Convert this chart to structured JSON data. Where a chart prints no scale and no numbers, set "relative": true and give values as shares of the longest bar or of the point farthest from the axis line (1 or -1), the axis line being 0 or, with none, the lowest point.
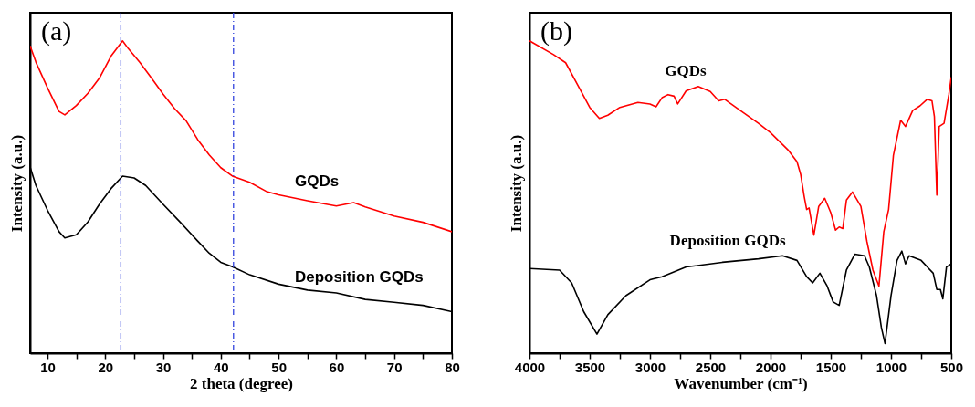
{
  "chart_data": [
    {
      "type": "line",
      "relative": true,
      "xlabel": "2 theta (degree)",
      "ylabel": "Intensity (a.u.)",
      "xlim": [
        7,
        80
      ],
      "xticks": [
        10,
        {
          "value": 15,
          "label": null
        },
        20,
        {
          "value": 25,
          "label": null
        },
        30,
        {
          "value": 35,
          "label": null
        },
        40,
        {
          "value": 45,
          "label": null
        },
        50,
        {
          "value": 55,
          "label": null
        },
        60,
        {
          "value": 65,
          "label": null
        },
        70,
        {
          "value": 75,
          "label": null
        },
        80
      ],
      "tick_labels": "x",
      "legend": false,
      "grid": false,
      "marker": "none",
      "line_style": "solid",
      "annotations": [
        "(a)"
      ],
      "ref_lines": [
        {
          "axis": "x",
          "value": 22.7,
          "color": "#3344dd",
          "line_style": "dashed"
        },
        {
          "axis": "x",
          "value": 42.2,
          "color": "#3344dd",
          "line_style": "dashed"
        }
      ],
      "series": [
        {
          "name": "GQDs",
          "color": "#ff0000",
          "x": [
            7,
            8,
            10,
            12,
            13,
            15,
            17,
            19,
            21,
            23,
            24,
            26,
            28,
            30,
            32,
            34,
            36,
            38,
            40,
            42,
            45,
            48,
            50,
            55,
            60,
            63,
            65,
            70,
            75,
            80
          ],
          "values": [
            0.984,
            0.932,
            0.85,
            0.774,
            0.763,
            0.793,
            0.832,
            0.881,
            0.951,
            1,
            0.975,
            0.931,
            0.881,
            0.83,
            0.783,
            0.744,
            0.684,
            0.635,
            0.594,
            0.567,
            0.547,
            0.517,
            0.507,
            0.488,
            0.471,
            0.482,
            0.468,
            0.439,
            0.419,
            0.389
          ]
        },
        {
          "name": "Deposition GQDs",
          "color": "#000000",
          "x": [
            7,
            8,
            10,
            12,
            13,
            15,
            17,
            19,
            21,
            23,
            25,
            27,
            30,
            33,
            36,
            38,
            40,
            42,
            45,
            50,
            55,
            60,
            65,
            70,
            75,
            80
          ],
          "values": [
            0.596,
            0.537,
            0.458,
            0.389,
            0.369,
            0.379,
            0.42,
            0.477,
            0.527,
            0.567,
            0.561,
            0.537,
            0.477,
            0.419,
            0.359,
            0.32,
            0.291,
            0.277,
            0.251,
            0.221,
            0.202,
            0.193,
            0.172,
            0.163,
            0.153,
            0.133
          ]
        }
      ]
    },
    {
      "type": "line",
      "relative": true,
      "xlabel": "Wavenumber (cm⁻¹)",
      "ylabel": "Intensity (a.u.)",
      "xlim": [
        4000,
        500
      ],
      "xticks": [
        4000,
        {
          "value": 3750,
          "label": null
        },
        3500,
        {
          "value": 3250,
          "label": null
        },
        3000,
        {
          "value": 2750,
          "label": null
        },
        2500,
        {
          "value": 2250,
          "label": null
        },
        2000,
        {
          "value": 1750,
          "label": null
        },
        1500,
        {
          "value": 1250,
          "label": null
        },
        1000,
        {
          "value": 750,
          "label": null
        },
        500
      ],
      "tick_labels": "x",
      "legend": false,
      "grid": false,
      "marker": "none",
      "line_style": "solid",
      "annotations": [
        "(b)"
      ],
      "series": [
        {
          "name": "GQDs",
          "color": "#ff0000",
          "x": [
            4000,
            3800,
            3700,
            3600,
            3500,
            3420,
            3350,
            3250,
            3100,
            3000,
            2950,
            2900,
            2850,
            2800,
            2770,
            2700,
            2600,
            2500,
            2430,
            2380,
            2250,
            2100,
            2000,
            1850,
            1780,
            1750,
            1720,
            1700,
            1680,
            1640,
            1600,
            1550,
            1500,
            1460,
            1430,
            1400,
            1370,
            1320,
            1250,
            1200,
            1150,
            1100,
            1060,
            1020,
            980,
            920,
            880,
            820,
            760,
            700,
            660,
            640,
            620,
            600,
            560,
            520,
            500
          ],
          "values": [
            1,
            0.956,
            0.93,
            0.859,
            0.787,
            0.752,
            0.762,
            0.787,
            0.803,
            0.798,
            0.789,
            0.818,
            0.828,
            0.823,
            0.798,
            0.84,
            0.854,
            0.838,
            0.808,
            0.813,
            0.777,
            0.736,
            0.706,
            0.649,
            0.613,
            0.573,
            0.501,
            0.46,
            0.465,
            0.378,
            0.47,
            0.496,
            0.45,
            0.394,
            0.404,
            0.399,
            0.49,
            0.516,
            0.47,
            0.358,
            0.266,
            0.215,
            0.389,
            0.46,
            0.634,
            0.746,
            0.726,
            0.777,
            0.792,
            0.813,
            0.808,
            0.757,
            0.506,
            0.726,
            0.736,
            0.828,
            0.884
          ]
        },
        {
          "name": "Deposition GQDs",
          "color": "#000000",
          "x": [
            4000,
            3750,
            3650,
            3550,
            3440,
            3350,
            3200,
            3000,
            2900,
            2700,
            2400,
            2100,
            1900,
            1780,
            1700,
            1650,
            1590,
            1530,
            1480,
            1430,
            1370,
            1300,
            1220,
            1180,
            1120,
            1080,
            1050,
            1000,
            950,
            910,
            880,
            850,
            750,
            650,
            620,
            590,
            570,
            540,
            500
          ],
          "values": [
            0.271,
            0.266,
            0.225,
            0.133,
            0.061,
            0.123,
            0.184,
            0.235,
            0.245,
            0.276,
            0.291,
            0.302,
            0.312,
            0.297,
            0.245,
            0.225,
            0.256,
            0.215,
            0.164,
            0.153,
            0.266,
            0.317,
            0.312,
            0.276,
            0.184,
            0.082,
            0.031,
            0.184,
            0.297,
            0.327,
            0.286,
            0.312,
            0.297,
            0.256,
            0.204,
            0.204,
            0.174,
            0.276,
            0.286
          ]
        }
      ]
    }
  ]
}
